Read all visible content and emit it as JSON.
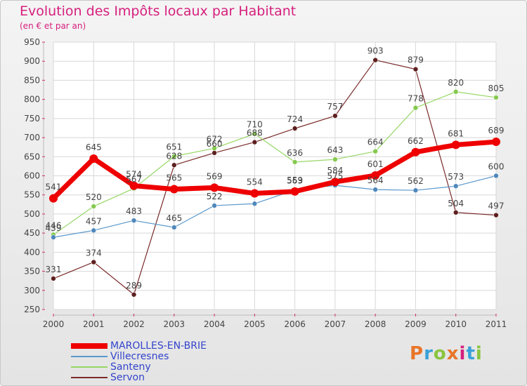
{
  "title": "Evolution des Impôts locaux par Habitant",
  "subtitle": "(en € et par an)",
  "logo": {
    "text": "Proxiti",
    "colors": [
      "#e8752a",
      "#3aa1d8",
      "#8ac43f",
      "#e8752a",
      "#d6207d",
      "#3aa1d8",
      "#8ac43f"
    ]
  },
  "chart_data": {
    "type": "line",
    "x": [
      "2000",
      "2001",
      "2002",
      "2003",
      "2004",
      "2005",
      "2006",
      "2007",
      "2008",
      "2009",
      "2010",
      "2011"
    ],
    "ylim": [
      250,
      950
    ],
    "yticks": [
      250,
      300,
      350,
      400,
      450,
      500,
      550,
      600,
      650,
      700,
      750,
      800,
      850,
      900,
      950
    ],
    "grid": true,
    "legend_placement": "bottom-left",
    "series": [
      {
        "name": "MAROLLES-EN-BRIE",
        "color": "#ee0000",
        "values": [
          541,
          645,
          574,
          565,
          569,
          554,
          559,
          584,
          601,
          662,
          681,
          689
        ]
      },
      {
        "name": "Villecresnes",
        "color": "#5a98cc",
        "values": [
          439,
          457,
          483,
          465,
          522,
          527,
          563,
          575,
          564,
          562,
          573,
          600
        ]
      },
      {
        "name": "Santeny",
        "color": "#96d765",
        "values": [
          446,
          520,
          567,
          651,
          672,
          710,
          636,
          643,
          664,
          778,
          820,
          805
        ]
      },
      {
        "name": "Servon",
        "color": "#7a2a2a",
        "values": [
          331,
          374,
          289,
          628,
          660,
          688,
          724,
          757,
          903,
          879,
          504,
          497
        ]
      }
    ],
    "data_labels": [
      [
        "541",
        "645",
        "574",
        "565",
        "569",
        "554",
        "559",
        "584",
        "601",
        "662",
        "681",
        "689"
      ],
      [
        "439",
        "457",
        "483",
        "465",
        "522",
        "",
        "563",
        "575",
        "564",
        "562",
        "573",
        "600"
      ],
      [
        "446",
        "520",
        "567",
        "651",
        "672",
        "710",
        "636",
        "643",
        "664",
        "778",
        "820",
        "805"
      ],
      [
        "331",
        "374",
        "289",
        "628",
        "660",
        "688",
        "724",
        "757",
        "903",
        "879",
        "504",
        "497"
      ]
    ]
  }
}
